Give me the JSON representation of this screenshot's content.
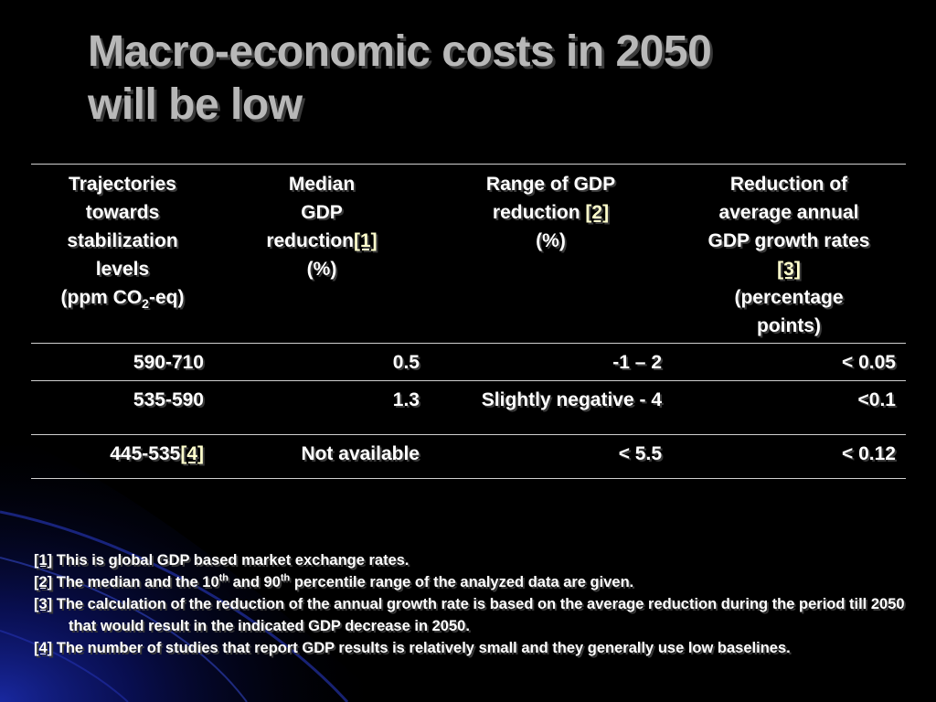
{
  "slide": {
    "title_line1": "Macro-economic costs in 2050",
    "title_line2": "will be low",
    "colors": {
      "background": "#000000",
      "title": "#b8b8b8",
      "swoosh": "#1a2aa8"
    }
  },
  "table": {
    "headers": {
      "col1": {
        "l1": "Trajectories",
        "l2": "towards",
        "l3": "stabilization",
        "l4": "levels",
        "l5a": "(ppm CO",
        "l5sub": "2",
        "l5b": "-eq)"
      },
      "col2": {
        "l1": "Median",
        "l2": "GDP",
        "l3": "reduction",
        "ref": "[1]",
        "l4": "(%)"
      },
      "col3": {
        "l1": "Range of GDP",
        "l2": "reduction ",
        "ref": "[2]",
        "l3": "(%)"
      },
      "col4": {
        "l1": "Reduction of",
        "l2": "average annual",
        "l3": "GDP growth rates",
        "ref": "[3]",
        "l4": "(percentage",
        "l5": "points)"
      }
    },
    "rows": [
      {
        "level": "590-710",
        "level_ref": "",
        "median": "0.5",
        "range": "-1 – 2",
        "growth": "< 0.05"
      },
      {
        "level": "535-590",
        "level_ref": "",
        "median": "1.3",
        "range": "Slightly negative - 4",
        "growth": "<0.1"
      },
      {
        "level": "445-535",
        "level_ref": "[4]",
        "median": "Not available",
        "range": "< 5.5",
        "growth": "< 0.12"
      }
    ]
  },
  "footnotes": {
    "n1": {
      "ref": "[1]",
      "text": " This is global GDP based market exchange rates."
    },
    "n2": {
      "ref": "[2]",
      "text_a": " The median and the 10",
      "sup1": "th",
      "text_b": " and 90",
      "sup2": "th",
      "text_c": " percentile range of the analyzed data are given."
    },
    "n3": {
      "ref": "[3]",
      "text": " The calculation of the reduction of the annual growth rate is based on the average reduction during the period till 2050",
      "cont": "that would result in the indicated GDP decrease in 2050."
    },
    "n4": {
      "ref": "[4]",
      "text": " The number of studies that report GDP results is relatively small and they generally use low baselines."
    }
  }
}
